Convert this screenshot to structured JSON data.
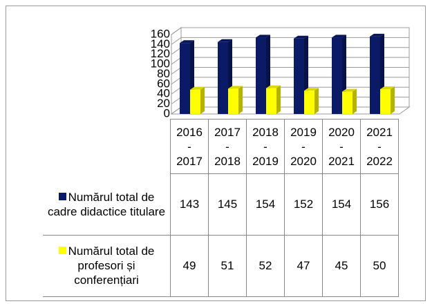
{
  "chart_data": {
    "type": "bar",
    "categories": [
      "2016 - 2017",
      "2017 - 2018",
      "2018 - 2019",
      "2019 - 2020",
      "2020 - 2021",
      "2021 - 2022"
    ],
    "series": [
      {
        "name": "Numărul total de cadre didactice titulare",
        "color": "#0a1a66",
        "values": [
          143,
          145,
          154,
          152,
          154,
          156
        ]
      },
      {
        "name": "Numărul total de profesori și conferențiari",
        "color": "#ffff00",
        "values": [
          49,
          51,
          52,
          47,
          45,
          50
        ]
      }
    ],
    "ylim": [
      0,
      160
    ],
    "yticks": [
      0,
      20,
      40,
      60,
      80,
      100,
      120,
      140,
      160
    ],
    "grid": true,
    "data_table": true
  }
}
